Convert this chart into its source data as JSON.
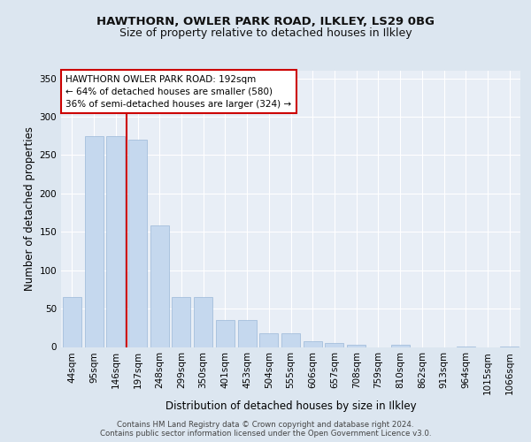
{
  "title1": "HAWTHORN, OWLER PARK ROAD, ILKLEY, LS29 0BG",
  "title2": "Size of property relative to detached houses in Ilkley",
  "xlabel": "Distribution of detached houses by size in Ilkley",
  "ylabel": "Number of detached properties",
  "footer1": "Contains HM Land Registry data © Crown copyright and database right 2024.",
  "footer2": "Contains public sector information licensed under the Open Government Licence v3.0.",
  "annotation_line1": "HAWTHORN OWLER PARK ROAD: 192sqm",
  "annotation_line2": "← 64% of detached houses are smaller (580)",
  "annotation_line3": "36% of semi-detached houses are larger (324) →",
  "categories": [
    "44sqm",
    "95sqm",
    "146sqm",
    "197sqm",
    "248sqm",
    "299sqm",
    "350sqm",
    "401sqm",
    "453sqm",
    "504sqm",
    "555sqm",
    "606sqm",
    "657sqm",
    "708sqm",
    "759sqm",
    "810sqm",
    "862sqm",
    "913sqm",
    "964sqm",
    "1015sqm",
    "1066sqm"
  ],
  "values": [
    65,
    275,
    275,
    270,
    158,
    65,
    65,
    35,
    35,
    18,
    18,
    8,
    5,
    3,
    0,
    3,
    0,
    0,
    1,
    0,
    1
  ],
  "bar_color": "#c5d8ee",
  "bar_edge_color": "#9ab8d8",
  "vline_color": "#cc0000",
  "vline_x_index": 3,
  "annotation_box_facecolor": "#ffffff",
  "annotation_box_edgecolor": "#cc0000",
  "background_color": "#dce6f0",
  "plot_bg_color": "#e8eef6",
  "grid_color": "#ffffff",
  "title1_fontsize": 9.5,
  "title2_fontsize": 9,
  "ylabel_fontsize": 8.5,
  "xlabel_fontsize": 8.5,
  "tick_fontsize": 7.5,
  "annot_fontsize": 7.5,
  "footer_fontsize": 6.2,
  "ylim": [
    0,
    360
  ],
  "yticks": [
    0,
    50,
    100,
    150,
    200,
    250,
    300,
    350
  ]
}
